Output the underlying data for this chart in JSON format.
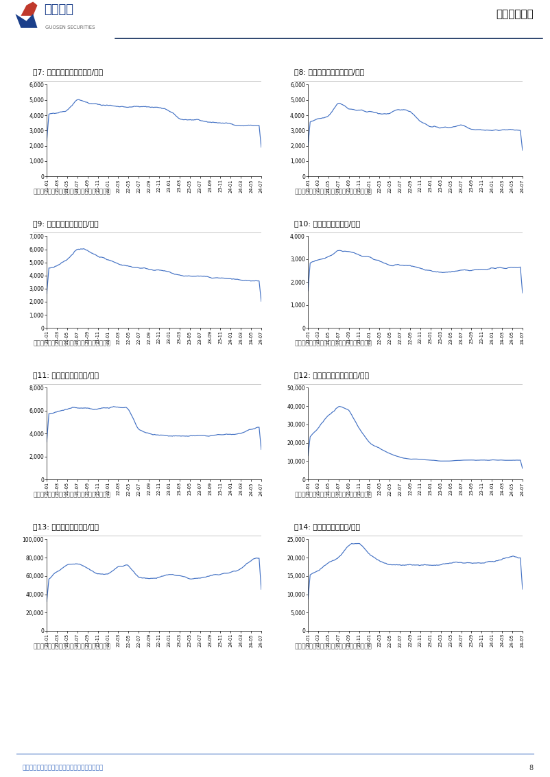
{
  "page_title": "证券研究报告",
  "logo_text": "国信证券",
  "logo_sub": "GUOSEN SECURITIES",
  "footer_text": "请务必阅读正文之后的免责声明及其项下所有内容",
  "page_num": "8",
  "source_text": "资料来源：百川盈孚，国信证券经济研究所整理",
  "charts": [
    {
      "title": "图7: 铸造生铁价格走势（元/吨）",
      "ylim": [
        0,
        6000
      ],
      "yticks": [
        0,
        1000,
        2000,
        3000,
        4000,
        5000,
        6000
      ],
      "yticklabels": [
        "0",
        "1,000",
        "2,000",
        "3,000",
        "4,000",
        "5,000",
        "6,000"
      ]
    },
    {
      "title": "图8: 炼钢生铁价格走势（元/吨）",
      "ylim": [
        0,
        6000
      ],
      "yticks": [
        0,
        1000,
        2000,
        3000,
        4000,
        5000,
        6000
      ],
      "yticklabels": [
        "0",
        "1,000",
        "2,000",
        "3,000",
        "4,000",
        "5,000",
        "6,000"
      ]
    },
    {
      "title": "图9: 中厚板价格走势（元/吨）",
      "ylim": [
        0,
        7000
      ],
      "yticks": [
        0,
        1000,
        2000,
        3000,
        4000,
        5000,
        6000,
        7000
      ],
      "yticklabels": [
        "0",
        "1,000",
        "2,000",
        "3,000",
        "4,000",
        "5,000",
        "6,000",
        "7,000"
      ]
    },
    {
      "title": "图10: 废钢价格走势（元/吨）",
      "ylim": [
        0,
        4000
      ],
      "yticks": [
        0,
        1000,
        2000,
        3000,
        4000
      ],
      "yticklabels": [
        "0",
        "1,000",
        "2,000",
        "3,000",
        "4,000"
      ]
    },
    {
      "title": "图11: 玻纤价格走势（元/吨）",
      "ylim": [
        0,
        8000
      ],
      "yticks": [
        0,
        2000,
        4000,
        6000,
        8000
      ],
      "yticklabels": [
        "0",
        "2,000",
        "4,000",
        "6,000",
        "8,000"
      ]
    },
    {
      "title": "图12: 环氧树脂价格走势（元/吨）",
      "ylim": [
        0,
        50000
      ],
      "yticks": [
        0,
        10000,
        20000,
        30000,
        40000,
        50000
      ],
      "yticklabels": [
        "0",
        "10,000",
        "20,000",
        "30,000",
        "40,000",
        "50,000"
      ]
    },
    {
      "title": "图13: 铜价价格走势（元/吨）",
      "ylim": [
        0,
        100000
      ],
      "yticks": [
        0,
        20000,
        40000,
        60000,
        80000,
        100000
      ],
      "yticklabels": [
        "0",
        "20,000",
        "40,000",
        "60,000",
        "80,000",
        "100,000"
      ]
    },
    {
      "title": "图14: 铝价价格走势（元/吨）",
      "ylim": [
        0,
        25000
      ],
      "yticks": [
        0,
        5000,
        10000,
        15000,
        20000,
        25000
      ],
      "yticklabels": [
        "0",
        "5,000",
        "10,000",
        "15,000",
        "20,000",
        "25,000"
      ]
    }
  ],
  "x_labels": [
    "21-01",
    "21-03",
    "21-05",
    "21-07",
    "21-09",
    "21-11",
    "22-01",
    "22-03",
    "22-05",
    "22-07",
    "22-09",
    "22-11",
    "23-01",
    "23-03",
    "23-05",
    "23-07",
    "23-09",
    "23-11",
    "24-01",
    "24-03",
    "24-05",
    "24-07"
  ],
  "line_color": "#4472C4",
  "header_line_color": "#1F3864",
  "background_color": "#FFFFFF",
  "title_color": "#000000",
  "source_color": "#595959",
  "footer_color": "#4472C4"
}
